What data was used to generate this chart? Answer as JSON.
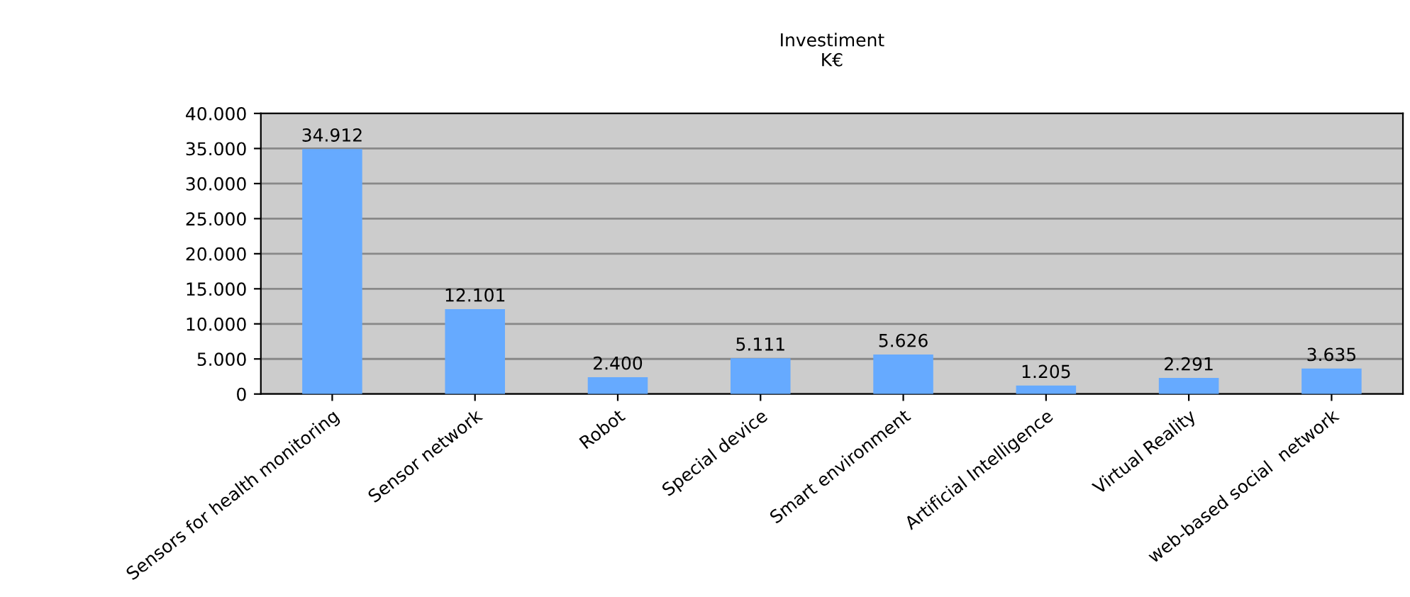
{
  "chart_data": {
    "type": "bar",
    "title": "Investiment\nK€",
    "categories": [
      "Sensors for health monitoring",
      "Sensor network",
      "Robot",
      "Special device",
      "Smart environment",
      "Artificial Intelligence",
      "Virtual Reality",
      "web-based social  network"
    ],
    "values": [
      34912,
      12101,
      2400,
      5111,
      5626,
      1205,
      2291,
      3635
    ],
    "value_labels": [
      "34.912",
      "12.101",
      "2.400",
      "5.111",
      "5.626",
      "1.205",
      "2.291",
      "3.635"
    ],
    "color": "#66aaff",
    "ylim": [
      0,
      40000
    ],
    "yticks": [
      {
        "value": 0,
        "label": "0"
      },
      {
        "value": 5000,
        "label": "5.000"
      },
      {
        "value": 10000,
        "label": "10.000"
      },
      {
        "value": 15000,
        "label": "15.000"
      },
      {
        "value": 20000,
        "label": "20.000"
      },
      {
        "value": 25000,
        "label": "25.000"
      },
      {
        "value": 30000,
        "label": "30.000"
      },
      {
        "value": 35000,
        "label": "35.000"
      },
      {
        "value": 40000,
        "label": "40.000"
      }
    ],
    "grid": "y"
  }
}
